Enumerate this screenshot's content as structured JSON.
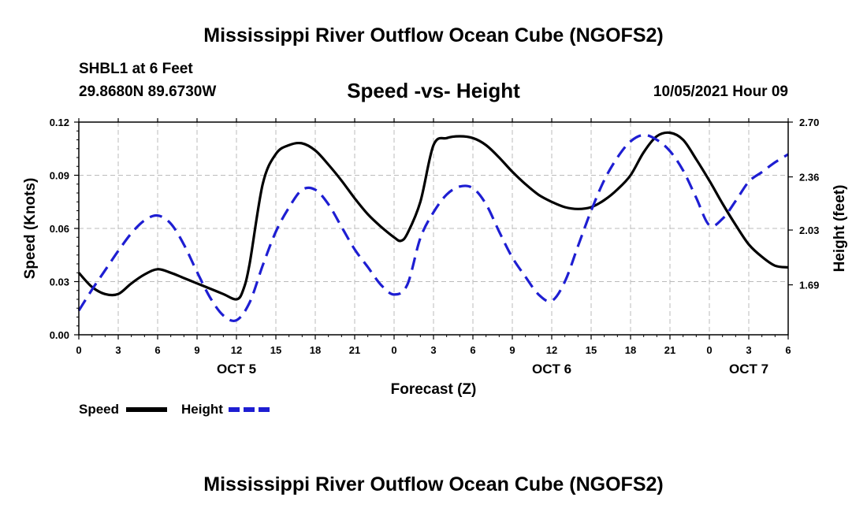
{
  "title_top": "Mississippi River Outflow Ocean Cube (NGOFS2)",
  "title_bottom": "Mississippi River Outflow Ocean Cube (NGOFS2)",
  "station": "SHBL1 at 6 Feet",
  "coords": "29.8680N  89.6730W",
  "subtitle": "Speed -vs- Height",
  "datetime": "10/05/2021 Hour 09",
  "chart_data": {
    "type": "line",
    "title": "Speed -vs- Height",
    "xlabel": "Forecast (Z)",
    "ylabel_left": "Speed (Knots)",
    "ylabel_right": "Height (feet)",
    "xlim": [
      0,
      54
    ],
    "ylim_left": [
      0,
      0.12
    ],
    "ylim_right": [
      1.38,
      2.7
    ],
    "x_ticks": [
      0,
      3,
      6,
      9,
      12,
      15,
      18,
      21,
      24,
      27,
      30,
      33,
      36,
      39,
      42,
      45,
      48,
      51,
      54
    ],
    "x_tick_labels": [
      "0",
      "3",
      "6",
      "9",
      "12",
      "15",
      "18",
      "21",
      "0",
      "3",
      "6",
      "9",
      "12",
      "15",
      "18",
      "21",
      "0",
      "3",
      "6"
    ],
    "y_left_ticks": [
      0,
      0.03,
      0.06,
      0.09,
      0.12
    ],
    "y_left_tick_labels": [
      "0.00",
      "0.03",
      "0.06",
      "0.09",
      "0.12"
    ],
    "y_right_ticks": [
      1.69,
      2.03,
      2.36,
      2.7
    ],
    "y_right_tick_labels": [
      "1.69",
      "2.03",
      "2.36",
      "2.70"
    ],
    "date_labels": [
      {
        "x": 12,
        "label": "OCT 5"
      },
      {
        "x": 36,
        "label": "OCT 6"
      },
      {
        "x": 51,
        "label": "OCT 7"
      }
    ],
    "grid": true,
    "series": [
      {
        "name": "Speed",
        "axis": "left",
        "color": "#000000",
        "style": "solid",
        "x": [
          0,
          1,
          2,
          3,
          4,
          5,
          6,
          7,
          8,
          9,
          10,
          11,
          12,
          12.5,
          13,
          14,
          15,
          16,
          17,
          18,
          19,
          20,
          21,
          22,
          23,
          24,
          24.5,
          25,
          26,
          27,
          28,
          29,
          30,
          31,
          32,
          33,
          34,
          35,
          36,
          37,
          38,
          39,
          40,
          41,
          42,
          43,
          44,
          45,
          46,
          47,
          48,
          49,
          50,
          51,
          52,
          53,
          54
        ],
        "values": [
          0.035,
          0.027,
          0.023,
          0.023,
          0.029,
          0.034,
          0.037,
          0.035,
          0.032,
          0.029,
          0.026,
          0.023,
          0.02,
          0.025,
          0.04,
          0.085,
          0.102,
          0.107,
          0.108,
          0.104,
          0.096,
          0.087,
          0.077,
          0.068,
          0.061,
          0.055,
          0.053,
          0.057,
          0.075,
          0.107,
          0.111,
          0.112,
          0.111,
          0.107,
          0.1,
          0.092,
          0.085,
          0.079,
          0.075,
          0.072,
          0.071,
          0.072,
          0.076,
          0.082,
          0.09,
          0.103,
          0.112,
          0.114,
          0.11,
          0.099,
          0.087,
          0.074,
          0.062,
          0.051,
          0.044,
          0.039,
          0.038
        ]
      },
      {
        "name": "Height",
        "axis": "right",
        "color": "#1e1ed2",
        "style": "dashed",
        "x": [
          0,
          1,
          2,
          3,
          4,
          5,
          6,
          7,
          8,
          9,
          10,
          11,
          12,
          13,
          14,
          15,
          16,
          17,
          18,
          19,
          20,
          21,
          22,
          23,
          24,
          25,
          26,
          27,
          28,
          29,
          30,
          31,
          32,
          33,
          34,
          35,
          36,
          37,
          38,
          39,
          40,
          41,
          42,
          43,
          44,
          45,
          46,
          47,
          48,
          49,
          50,
          51,
          52,
          53,
          54
        ],
        "values": [
          1.53,
          1.66,
          1.78,
          1.9,
          2.01,
          2.09,
          2.12,
          2.07,
          1.94,
          1.77,
          1.61,
          1.5,
          1.47,
          1.58,
          1.81,
          2.02,
          2.17,
          2.28,
          2.28,
          2.19,
          2.05,
          1.91,
          1.8,
          1.69,
          1.63,
          1.69,
          1.98,
          2.14,
          2.25,
          2.3,
          2.29,
          2.19,
          2.02,
          1.86,
          1.74,
          1.63,
          1.59,
          1.71,
          1.93,
          2.15,
          2.34,
          2.48,
          2.58,
          2.62,
          2.59,
          2.52,
          2.4,
          2.23,
          2.06,
          2.1,
          2.21,
          2.33,
          2.39,
          2.45,
          2.5
        ]
      }
    ],
    "legend": [
      {
        "label": "Speed",
        "color": "#000000",
        "style": "solid"
      },
      {
        "label": "Height",
        "color": "#1e1ed2",
        "style": "dashed"
      }
    ]
  }
}
